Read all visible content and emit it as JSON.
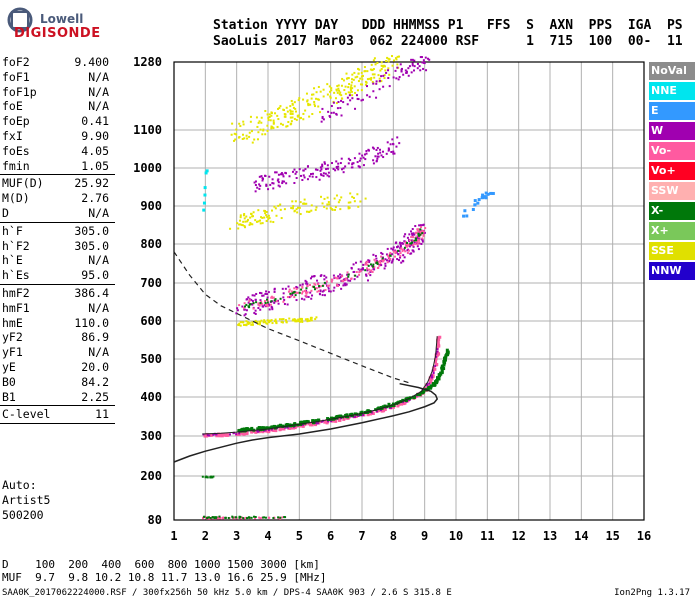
{
  "logo": {
    "line1": "Lowell",
    "line2": "DIGISONDE"
  },
  "header": {
    "line1": "Station YYYY DAY   DDD HHMMSS P1   FFS  S  AXN  PPS  IGA  PS",
    "line2": "SaoLuis 2017 Mar03  062 224000 RSF      1  715  100  00-  11"
  },
  "params": [
    {
      "k": "foF2",
      "v": "9.400"
    },
    {
      "k": "foF1",
      "v": "N/A"
    },
    {
      "k": "foF1p",
      "v": "N/A"
    },
    {
      "k": "foE",
      "v": "N/A"
    },
    {
      "k": "foEp",
      "v": "0.41"
    },
    {
      "k": "fxI",
      "v": "9.90"
    },
    {
      "k": "foEs",
      "v": "4.05"
    },
    {
      "k": "fmin",
      "v": "1.05"
    },
    {
      "sep": true
    },
    {
      "k": "MUF(D)",
      "v": "25.92"
    },
    {
      "k": "M(D)",
      "v": "2.76"
    },
    {
      "k": "D",
      "v": "N/A"
    },
    {
      "sep": true
    },
    {
      "k": "h`F",
      "v": "305.0"
    },
    {
      "k": "h`F2",
      "v": "305.0"
    },
    {
      "k": "h`E",
      "v": "N/A"
    },
    {
      "k": "h`Es",
      "v": "95.0"
    },
    {
      "sep": true
    },
    {
      "k": "hmF2",
      "v": "386.4"
    },
    {
      "k": "hmF1",
      "v": "N/A"
    },
    {
      "k": "hmE",
      "v": "110.0"
    },
    {
      "k": "yF2",
      "v": "86.9"
    },
    {
      "k": "yF1",
      "v": "N/A"
    },
    {
      "k": "yE",
      "v": "20.0"
    },
    {
      "k": "B0",
      "v": "84.2"
    },
    {
      "k": "B1",
      "v": "2.25"
    },
    {
      "sep": true
    },
    {
      "k": "C-level",
      "v": "11"
    },
    {
      "sep": true
    }
  ],
  "auto": {
    "l1": "Auto:",
    "l2": "Artist5",
    "l3": "500200"
  },
  "legend": [
    {
      "name": "NoVal",
      "color": "#8c8c8c"
    },
    {
      "name": "NNE",
      "color": "#00e5ee"
    },
    {
      "name": "E",
      "color": "#3399ff"
    },
    {
      "name": "W",
      "color": "#a000b0"
    },
    {
      "name": "Vo-",
      "color": "#ff5aa0"
    },
    {
      "name": "Vo+",
      "color": "#ff0022"
    },
    {
      "name": "SSW",
      "color": "#ffb0b0"
    },
    {
      "name": "X-",
      "color": "#00780a"
    },
    {
      "name": "X+",
      "color": "#7ac85a"
    },
    {
      "name": "SSE",
      "color": "#e0e000"
    },
    {
      "name": "NNW",
      "color": "#2200cc"
    }
  ],
  "muf": {
    "line1": "D    100  200  400  600  800 1000 1500 3000 [km]",
    "line2": "MUF  9.7  9.8 10.2 10.8 11.7 13.0 16.6 25.9 [MHz]"
  },
  "footer": {
    "left": "SAA0K_2017062224000.RSF / 300fx256h 50 kHz 5.0 km / DPS-4 SAA0K 903 / 2.6 S 315.8 E",
    "right": "Ion2Png 1.3.17"
  },
  "chart_data": {
    "type": "scatter",
    "xlim": [
      1,
      16
    ],
    "ylim": [
      80,
      1280
    ],
    "x_ticks": [
      "1",
      "2",
      "3",
      "4",
      "5",
      "6",
      "7",
      "8",
      "9",
      "10",
      "11",
      "12",
      "13",
      "14",
      "15",
      "16"
    ],
    "y_ticks": [
      "80",
      "200",
      "300",
      "400",
      "500",
      "600",
      "700",
      "800",
      "900",
      "1000",
      "1100",
      "1280"
    ],
    "grid": true,
    "o_trace": {
      "x": [
        1.9,
        2.5,
        3.0,
        3.5,
        4.0,
        4.5,
        5.0,
        5.5,
        6.0,
        6.5,
        7.0,
        7.5,
        8.0,
        8.5,
        8.9,
        9.1,
        9.25,
        9.35,
        9.4
      ],
      "y": [
        305,
        307,
        310,
        314,
        318,
        324,
        330,
        336,
        343,
        350,
        358,
        368,
        380,
        396,
        415,
        440,
        470,
        510,
        560
      ]
    },
    "x_trace": {
      "x": [
        3.0,
        3.5,
        4.0,
        4.5,
        5.0,
        5.5,
        6.0,
        6.5,
        7.0,
        7.5,
        8.0,
        8.5,
        9.0,
        9.3,
        9.5,
        9.6,
        9.7
      ],
      "y": [
        318,
        321,
        325,
        330,
        336,
        342,
        349,
        356,
        364,
        374,
        386,
        400,
        420,
        440,
        470,
        500,
        525
      ]
    },
    "o_second_hop": {
      "x": [
        3.1,
        4,
        5,
        6,
        7,
        8,
        8.6,
        8.9
      ],
      "y": [
        640,
        655,
        680,
        705,
        735,
        775,
        810,
        840
      ]
    },
    "profile": {
      "x": [
        1.0,
        1.5,
        2.0,
        2.5,
        3.0,
        3.5,
        4.0,
        5.0,
        6.0,
        7.0,
        8.0,
        8.5,
        9.0,
        9.3,
        9.4,
        9.35,
        9.2,
        8.8,
        8.2
      ],
      "y": [
        235,
        250,
        262,
        272,
        282,
        290,
        296,
        305,
        318,
        334,
        352,
        362,
        375,
        385,
        395,
        405,
        415,
        425,
        435
      ]
    },
    "profile_dashed": {
      "x": [
        1.0,
        1.5,
        2.0,
        2.5,
        3.0,
        3.5,
        4.0,
        5.0,
        6.0,
        7.0,
        8.0,
        8.6
      ],
      "y": [
        780,
        720,
        670,
        640,
        620,
        600,
        580,
        548,
        515,
        482,
        450,
        435
      ]
    }
  }
}
